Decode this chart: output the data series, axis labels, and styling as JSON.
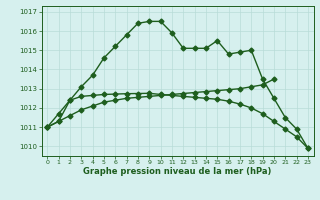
{
  "line1_x": [
    0,
    1,
    2,
    3,
    4,
    5,
    6,
    7,
    8,
    9,
    10,
    11,
    12,
    13,
    14,
    15,
    16,
    17,
    18,
    19,
    20,
    21,
    22,
    23
  ],
  "line1_y": [
    1011.0,
    1011.7,
    1012.4,
    1013.1,
    1013.7,
    1014.6,
    1015.2,
    1015.8,
    1016.4,
    1016.5,
    1016.5,
    1015.9,
    1015.1,
    1015.1,
    1015.1,
    1015.5,
    1014.8,
    1014.9,
    1015.0,
    1013.5,
    1012.5,
    1011.5,
    1010.9,
    1009.9
  ],
  "line2_x": [
    0,
    1,
    2,
    3,
    4,
    5,
    6,
    7,
    8,
    9,
    10,
    11,
    12,
    13,
    14,
    15,
    16,
    17,
    18,
    19,
    20
  ],
  "line2_y": [
    1011.0,
    1011.3,
    1011.6,
    1011.9,
    1012.1,
    1012.3,
    1012.4,
    1012.5,
    1012.55,
    1012.6,
    1012.65,
    1012.7,
    1012.75,
    1012.8,
    1012.85,
    1012.9,
    1012.95,
    1013.0,
    1013.1,
    1013.2,
    1013.5
  ],
  "line3_x": [
    0,
    1,
    2,
    3,
    4,
    5,
    6,
    7,
    8,
    9,
    10,
    11,
    12,
    13,
    14,
    15,
    16,
    17,
    18,
    19,
    20,
    21,
    22,
    23
  ],
  "line3_y": [
    1011.0,
    1011.3,
    1012.4,
    1012.6,
    1012.65,
    1012.7,
    1012.72,
    1012.74,
    1012.75,
    1012.76,
    1012.7,
    1012.65,
    1012.6,
    1012.55,
    1012.5,
    1012.45,
    1012.35,
    1012.2,
    1012.0,
    1011.7,
    1011.3,
    1010.9,
    1010.5,
    1009.9
  ],
  "color": "#1e5e1e",
  "bg_color": "#d6f0ee",
  "grid_color": "#b8dcd8",
  "xlabel": "Graphe pression niveau de la mer (hPa)",
  "xlim": [
    -0.5,
    23.5
  ],
  "ylim": [
    1009.5,
    1017.3
  ],
  "yticks": [
    1010,
    1011,
    1012,
    1013,
    1014,
    1015,
    1016,
    1017
  ],
  "xticks": [
    0,
    1,
    2,
    3,
    4,
    5,
    6,
    7,
    8,
    9,
    10,
    11,
    12,
    13,
    14,
    15,
    16,
    17,
    18,
    19,
    20,
    21,
    22,
    23
  ],
  "markersize": 2.5,
  "linewidth": 1.0
}
